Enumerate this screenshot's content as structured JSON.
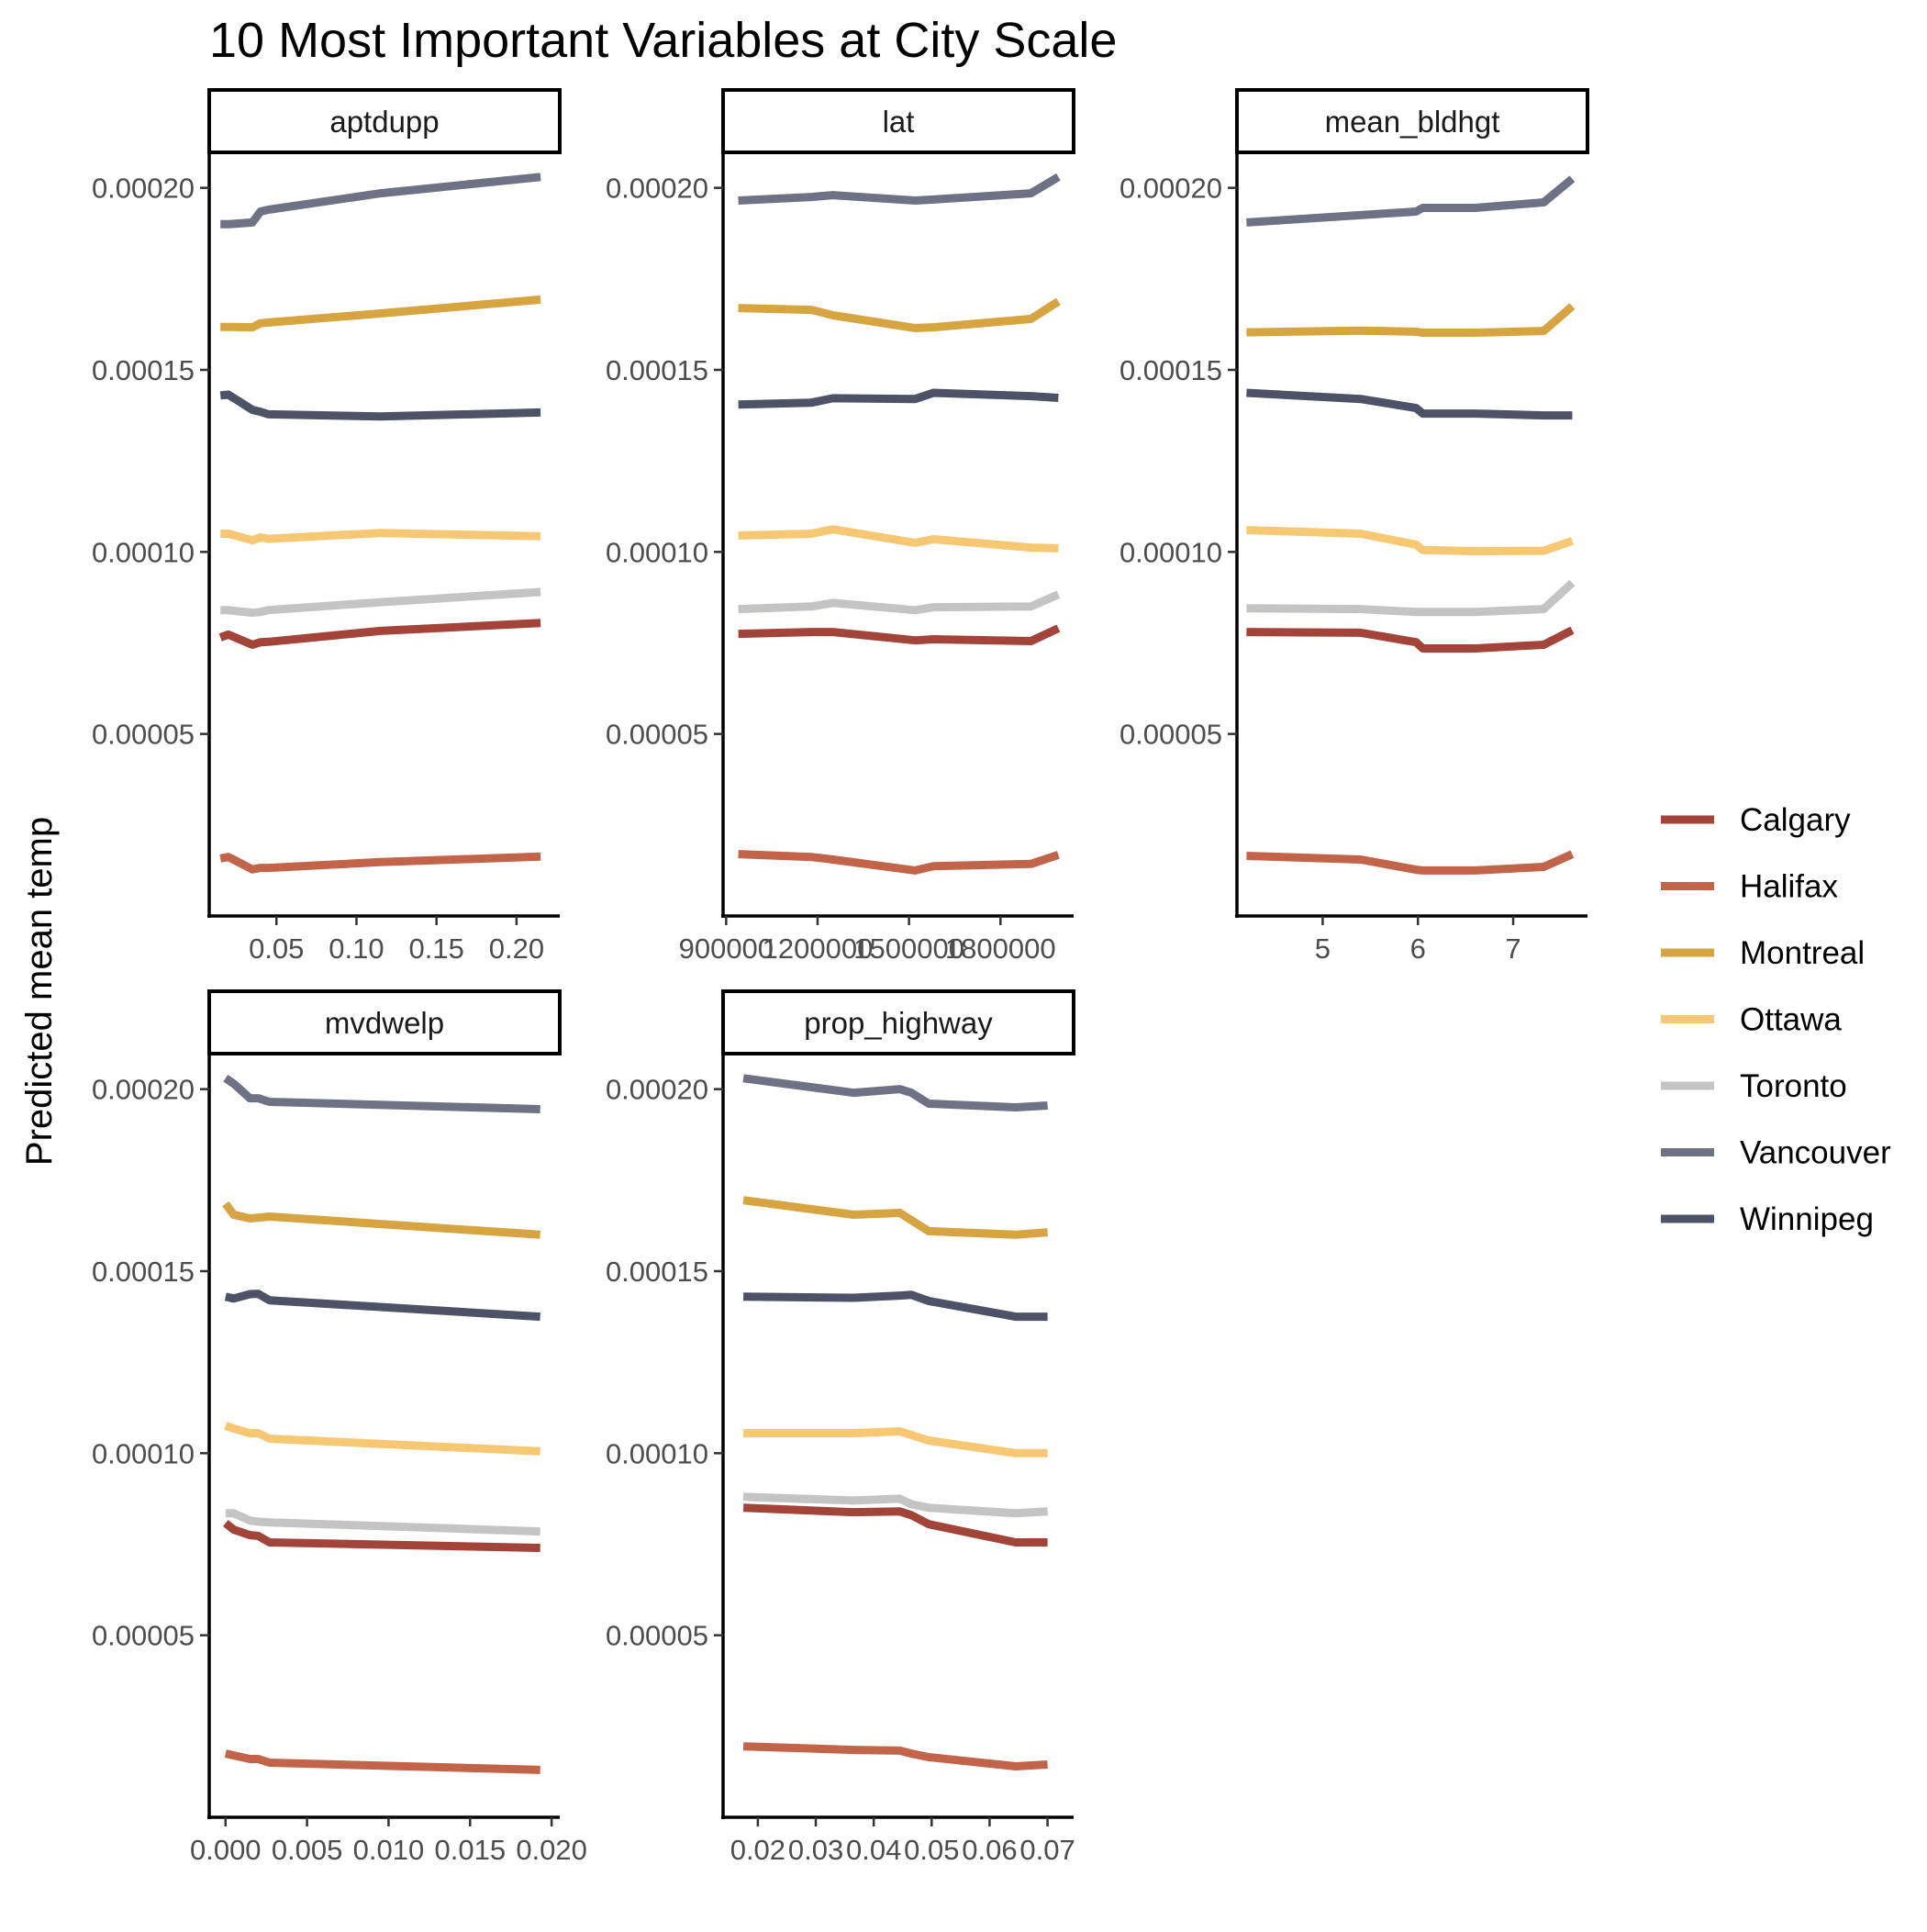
{
  "chart_data": {
    "type": "line",
    "title": "10 Most Important Variables at City Scale",
    "ylabel": "Predicted mean temp",
    "xlabel": "",
    "ylim": [
      0,
      0.00021
    ],
    "grid": false,
    "legend_placement": "right",
    "colors": {
      "Calgary": "#a3443b",
      "Halifax": "#c2644a",
      "Montreal": "#d6a441",
      "Ottawa": "#f7c873",
      "Toronto": "#c4c4c4",
      "Vancouver": "#6f7184",
      "Winnipeg": "#4d5266"
    },
    "legend": [
      "Calgary",
      "Halifax",
      "Montreal",
      "Ottawa",
      "Toronto",
      "Vancouver",
      "Winnipeg"
    ],
    "y_ticks": [
      {
        "v": 5e-05,
        "label": "0.00005"
      },
      {
        "v": 0.0001,
        "label": "0.00010"
      },
      {
        "v": 0.00015,
        "label": "0.00015"
      },
      {
        "v": 0.0002,
        "label": "0.00020"
      }
    ],
    "panels": [
      {
        "strip": "aptdupp",
        "xlim": [
          0.008,
          0.227
        ],
        "x_ticks": [
          {
            "v": 0.05,
            "label": "0.05"
          },
          {
            "v": 0.1,
            "label": "0.10"
          },
          {
            "v": 0.15,
            "label": "0.15"
          },
          {
            "v": 0.2,
            "label": "0.20"
          }
        ],
        "x": [
          0.015,
          0.02,
          0.035,
          0.04,
          0.045,
          0.115,
          0.215
        ],
        "series": [
          {
            "name": "Calgary",
            "values": [
              7.65e-05,
              7.73e-05,
              7.45e-05,
              7.52e-05,
              7.53e-05,
              7.83e-05,
              8.05e-05
            ]
          },
          {
            "name": "Halifax",
            "values": [
              1.58e-05,
              1.62e-05,
              1.28e-05,
              1.32e-05,
              1.32e-05,
              1.48e-05,
              1.63e-05
            ]
          },
          {
            "name": "Montreal",
            "values": [
              0.0001618,
              0.0001618,
              0.0001617,
              0.0001628,
              0.000163,
              0.0001655,
              0.0001693
            ]
          },
          {
            "name": "Ottawa",
            "values": [
              0.000105,
              0.000105,
              0.0001032,
              0.000104,
              0.0001036,
              0.0001052,
              0.0001043
            ]
          },
          {
            "name": "Toronto",
            "values": [
              8.4e-05,
              8.4e-05,
              8.33e-05,
              8.35e-05,
              8.4e-05,
              8.62e-05,
              8.9e-05
            ]
          },
          {
            "name": "Vancouver",
            "values": [
              0.00019,
              0.00019,
              0.0001905,
              0.0001935,
              0.000194,
              0.0001985,
              0.000203
            ]
          },
          {
            "name": "Winnipeg",
            "values": [
              0.000143,
              0.0001432,
              0.000139,
              0.0001385,
              0.0001378,
              0.0001372,
              0.0001383
            ]
          }
        ]
      },
      {
        "strip": "lat",
        "xlim": [
          890000,
          2040000
        ],
        "x_ticks": [
          {
            "v": 900000,
            "label": "900000"
          },
          {
            "v": 1200000,
            "label": "1200000"
          },
          {
            "v": 1500000,
            "label": "1500000"
          },
          {
            "v": 1800000,
            "label": "1800000"
          }
        ],
        "x": [
          940000,
          1180000,
          1250000,
          1520000,
          1580000,
          1900000,
          1990000
        ],
        "series": [
          {
            "name": "Calgary",
            "values": [
              7.75e-05,
              7.8e-05,
              7.8e-05,
              7.57e-05,
              7.6e-05,
              7.55e-05,
              7.9e-05
            ]
          },
          {
            "name": "Halifax",
            "values": [
              1.7e-05,
              1.62e-05,
              1.55e-05,
              1.25e-05,
              1.37e-05,
              1.43e-05,
              1.68e-05
            ]
          },
          {
            "name": "Montreal",
            "values": [
              0.000167,
              0.0001665,
              0.000165,
              0.0001615,
              0.0001617,
              0.000164,
              0.0001688
            ]
          },
          {
            "name": "Ottawa",
            "values": [
              0.0001045,
              0.000105,
              0.0001062,
              0.0001025,
              0.0001035,
              0.0001012,
              0.000101
            ]
          },
          {
            "name": "Toronto",
            "values": [
              8.43e-05,
              8.5e-05,
              8.6e-05,
              8.4e-05,
              8.48e-05,
              8.5e-05,
              8.83e-05
            ]
          },
          {
            "name": "Vancouver",
            "values": [
              0.0001965,
              0.0001975,
              0.000198,
              0.0001965,
              0.0001968,
              0.0001985,
              0.000203
            ]
          },
          {
            "name": "Winnipeg",
            "values": [
              0.0001405,
              0.000141,
              0.0001422,
              0.000142,
              0.0001437,
              0.0001428,
              0.0001423
            ]
          }
        ]
      },
      {
        "strip": "mean_bldhgt",
        "xlim": [
          4.1,
          7.78
        ],
        "x_ticks": [
          {
            "v": 5,
            "label": "5"
          },
          {
            "v": 6,
            "label": "6"
          },
          {
            "v": 7,
            "label": "7"
          }
        ],
        "x": [
          4.2,
          5.4,
          5.98,
          6.05,
          6.6,
          7.32,
          7.62
        ],
        "series": [
          {
            "name": "Calgary",
            "values": [
              7.8e-05,
              7.78e-05,
              7.52e-05,
              7.35e-05,
              7.35e-05,
              7.45e-05,
              7.85e-05
            ]
          },
          {
            "name": "Halifax",
            "values": [
              1.65e-05,
              1.55e-05,
              1.27e-05,
              1.25e-05,
              1.25e-05,
              1.35e-05,
              1.7e-05
            ]
          },
          {
            "name": "Montreal",
            "values": [
              0.0001603,
              0.0001608,
              0.0001605,
              0.0001602,
              0.0001602,
              0.0001607,
              0.0001675
            ]
          },
          {
            "name": "Ottawa",
            "values": [
              0.000106,
              0.000105,
              0.000102,
              0.0001005,
              0.0001002,
              0.0001003,
              0.000103
            ]
          },
          {
            "name": "Toronto",
            "values": [
              8.45e-05,
              8.43e-05,
              8.35e-05,
              8.35e-05,
              8.35e-05,
              8.43e-05,
              9.15e-05
            ]
          },
          {
            "name": "Vancouver",
            "values": [
              0.0001905,
              0.0001925,
              0.0001935,
              0.0001945,
              0.0001945,
              0.000196,
              0.0002025
            ]
          },
          {
            "name": "Winnipeg",
            "values": [
              0.0001437,
              0.000142,
              0.0001395,
              0.000138,
              0.000138,
              0.0001375,
              0.0001375
            ]
          }
        ]
      },
      {
        "strip": "mvdwelp",
        "xlim": [
          -0.001,
          0.0205
        ],
        "x_ticks": [
          {
            "v": 0.0,
            "label": "0.000"
          },
          {
            "v": 0.005,
            "label": "0.005"
          },
          {
            "v": 0.01,
            "label": "0.010"
          },
          {
            "v": 0.015,
            "label": "0.015"
          },
          {
            "v": 0.02,
            "label": "0.020"
          }
        ],
        "x": [
          0.0,
          0.0005,
          0.0015,
          0.002,
          0.0027,
          0.0193
        ],
        "series": [
          {
            "name": "Calgary",
            "values": [
              8.08e-05,
              7.9e-05,
              7.75e-05,
              7.73e-05,
              7.55e-05,
              7.4e-05
            ]
          },
          {
            "name": "Halifax",
            "values": [
              1.75e-05,
              1.7e-05,
              1.6e-05,
              1.6e-05,
              1.5e-05,
              1.3e-05
            ]
          },
          {
            "name": "Montreal",
            "values": [
              0.0001685,
              0.0001655,
              0.0001645,
              0.0001647,
              0.000165,
              0.00016
            ]
          },
          {
            "name": "Ottawa",
            "values": [
              0.0001075,
              0.0001068,
              0.0001055,
              0.0001055,
              0.000104,
              0.0001005
            ]
          },
          {
            "name": "Toronto",
            "values": [
              8.35e-05,
              8.35e-05,
              8.15e-05,
              8.12e-05,
              8.1e-05,
              7.85e-05
            ]
          },
          {
            "name": "Vancouver",
            "values": [
              0.000203,
              0.0002015,
              0.0001975,
              0.0001975,
              0.0001965,
              0.0001945
            ]
          },
          {
            "name": "Winnipeg",
            "values": [
              0.000143,
              0.0001425,
              0.0001437,
              0.0001438,
              0.000142,
              0.0001375
            ]
          }
        ]
      },
      {
        "strip": "prop_highway",
        "xlim": [
          0.014,
          0.0745
        ],
        "x_ticks": [
          {
            "v": 0.02,
            "label": "0.02"
          },
          {
            "v": 0.03,
            "label": "0.03"
          },
          {
            "v": 0.04,
            "label": "0.04"
          },
          {
            "v": 0.05,
            "label": "0.05"
          },
          {
            "v": 0.06,
            "label": "0.06"
          },
          {
            "v": 0.07,
            "label": "0.07"
          }
        ],
        "x": [
          0.0175,
          0.0365,
          0.0445,
          0.0465,
          0.0495,
          0.0645,
          0.07
        ],
        "series": [
          {
            "name": "Calgary",
            "values": [
              8.5e-05,
              8.38e-05,
              8.4e-05,
              8.3e-05,
              8.05e-05,
              7.55e-05,
              7.55e-05
            ]
          },
          {
            "name": "Halifax",
            "values": [
              1.95e-05,
              1.85e-05,
              1.83e-05,
              1.75e-05,
              1.65e-05,
              1.4e-05,
              1.45e-05
            ]
          },
          {
            "name": "Montreal",
            "values": [
              0.0001695,
              0.0001655,
              0.000166,
              0.000164,
              0.000161,
              0.00016,
              0.0001607
            ]
          },
          {
            "name": "Ottawa",
            "values": [
              0.0001055,
              0.0001055,
              0.000106,
              0.000105,
              0.0001035,
              0.0001,
              0.0001
            ]
          },
          {
            "name": "Toronto",
            "values": [
              8.8e-05,
              8.7e-05,
              8.75e-05,
              8.6e-05,
              8.5e-05,
              8.35e-05,
              8.4e-05
            ]
          },
          {
            "name": "Vancouver",
            "values": [
              0.000203,
              0.000199,
              0.0002,
              0.000199,
              0.000196,
              0.000195,
              0.0001955
            ]
          },
          {
            "name": "Winnipeg",
            "values": [
              0.000143,
              0.0001427,
              0.0001433,
              0.0001435,
              0.0001418,
              0.0001375,
              0.0001375
            ]
          }
        ]
      }
    ]
  }
}
